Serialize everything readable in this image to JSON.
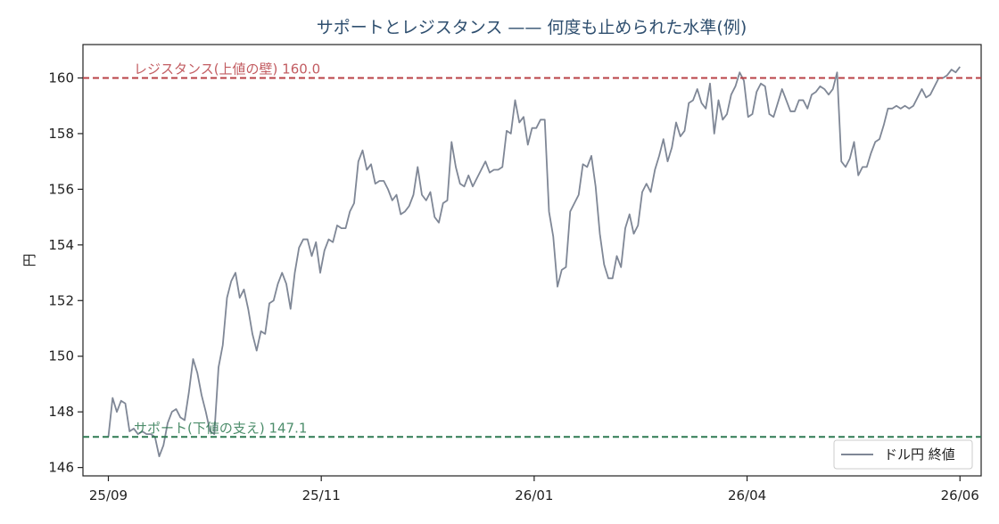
{
  "chart_data": {
    "type": "line",
    "title": "サポートとレジスタンス —— 何度も止められた水準(例)",
    "xlabel": "",
    "ylabel": "円",
    "x_ticks": [
      "25/09",
      "25/11",
      "26/01",
      "26/04",
      "26/06"
    ],
    "y_ticks": [
      "146",
      "148",
      "150",
      "152",
      "154",
      "156",
      "158",
      "160"
    ],
    "ylim": [
      145.7,
      161.2
    ],
    "xlim": [
      -6,
      206
    ],
    "grid": false,
    "legend": "bottom-right",
    "series": [
      {
        "name": "ドル円 終値",
        "color": "#7f8796",
        "values": [
          147.1,
          148.5,
          148.0,
          148.4,
          148.3,
          147.3,
          147.4,
          147.2,
          147.3,
          147.2,
          147.2,
          147.1,
          146.4,
          146.8,
          147.6,
          148.0,
          148.1,
          147.8,
          147.7,
          148.7,
          149.9,
          149.4,
          148.6,
          148.0,
          147.3,
          147.2,
          149.6,
          150.4,
          152.1,
          152.7,
          153.0,
          152.1,
          152.4,
          151.7,
          150.8,
          150.2,
          150.9,
          150.8,
          151.9,
          152.0,
          152.6,
          153.0,
          152.6,
          151.7,
          153.0,
          153.9,
          154.2,
          154.2,
          153.6,
          154.1,
          153.0,
          153.8,
          154.2,
          154.1,
          154.7,
          154.6,
          154.6,
          155.2,
          155.5,
          157.0,
          157.4,
          156.7,
          156.9,
          156.2,
          156.3,
          156.3,
          156.0,
          155.6,
          155.8,
          155.1,
          155.2,
          155.4,
          155.8,
          156.8,
          155.8,
          155.6,
          155.9,
          155.0,
          154.8,
          155.5,
          155.6,
          157.7,
          156.8,
          156.2,
          156.1,
          156.5,
          156.1,
          156.4,
          156.7,
          157.0,
          156.6,
          156.7,
          156.7,
          156.8,
          158.1,
          158.0,
          159.2,
          158.4,
          158.6,
          157.6,
          158.2,
          158.2,
          158.5,
          158.5,
          155.2,
          154.3,
          152.5,
          153.1,
          153.2,
          155.2,
          155.5,
          155.8,
          156.9,
          156.8,
          157.2,
          156.1,
          154.4,
          153.3,
          152.8,
          152.8,
          153.6,
          153.2,
          154.6,
          155.1,
          154.4,
          154.7,
          155.9,
          156.2,
          155.9,
          156.7,
          157.2,
          157.8,
          157.0,
          157.5,
          158.4,
          157.9,
          158.1,
          159.1,
          159.2,
          159.6,
          159.1,
          158.9,
          159.8,
          158.0,
          159.2,
          158.5,
          158.7,
          159.4,
          159.7,
          160.2,
          159.9,
          158.6,
          158.7,
          159.5,
          159.8,
          159.7,
          158.7,
          158.6,
          159.1,
          159.6,
          159.2,
          158.8,
          158.8,
          159.2,
          159.2,
          158.9,
          159.4,
          159.5,
          159.7,
          159.6,
          159.4,
          159.6,
          160.2,
          157.0,
          156.8,
          157.1,
          157.7,
          156.5,
          156.8,
          156.8,
          157.3,
          157.7,
          157.8,
          158.3,
          158.9,
          158.9,
          159.0,
          158.9,
          159.0,
          158.9,
          159.0,
          159.3,
          159.6,
          159.3,
          159.4,
          159.7,
          160.0,
          160.0,
          160.1,
          160.3,
          160.2,
          160.4
        ]
      }
    ],
    "reference_lines": [
      {
        "label": "レジスタンス(上値の壁) 160.0",
        "value": 160.0,
        "color": "#b84046",
        "style": "dashed"
      },
      {
        "label": "サポート(下値の支え) 147.1",
        "value": 147.1,
        "color": "#2e7a52",
        "style": "dashed"
      }
    ]
  }
}
